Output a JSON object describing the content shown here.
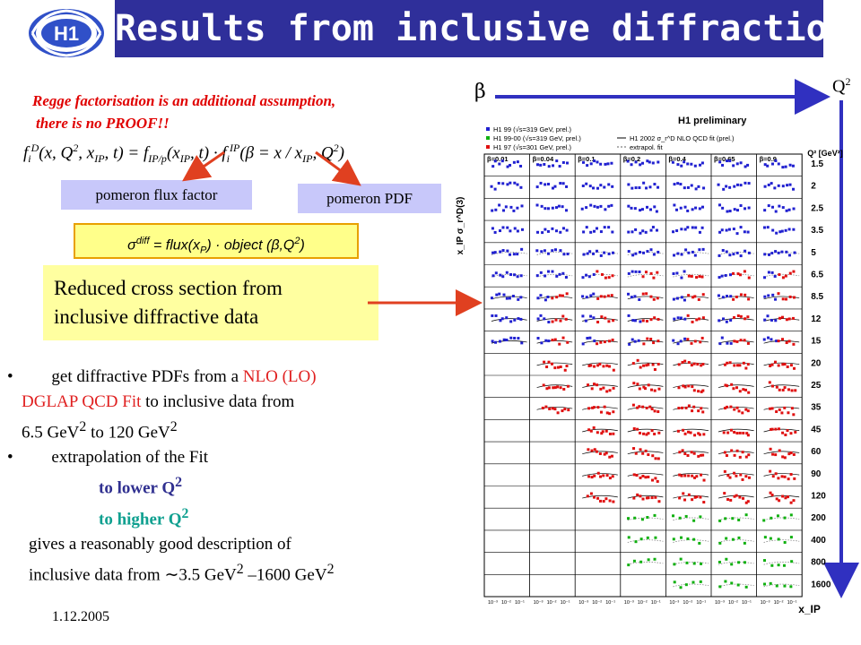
{
  "header": {
    "title": "Results from inclusive diffraction",
    "logo_text": "H1"
  },
  "left": {
    "regge_line1": "Regge factorisation is an additional assumption,",
    "regge_line2": "there is no PROOF!!",
    "flux_box": "pomeron flux factor",
    "pdf_box": "pomeron PDF",
    "sigma_prefix": "σ",
    "sigma_sup": "diff",
    "sigma_mid": " = flux(x",
    "sigma_sub": "P",
    "sigma_tail1": ") · object (β,Q",
    "sigma_sup2": "2",
    "sigma_tail2": ")",
    "reduced_line1": "Reduced cross section from",
    "reduced_line2": "inclusive diffractive data"
  },
  "bullets": {
    "b1_pre": "get diffractive PDFs from a ",
    "b1_red": "NLO (LO)",
    "b1_line2_red": "DGLAP QCD Fit",
    "b1_line2_rest": " to inclusive data from",
    "b1_line3": "6.5 GeV",
    "b1_line3_sup": "2",
    "b1_line3_mid": " to 120 GeV",
    "b1_line3_sup2": "2",
    "b2": "extrapolation of the Fit",
    "b2_lower": "to lower Q",
    "b2_lower_sup": "2",
    "b2_higher": "to higher Q",
    "b2_higher_sup": "2",
    "gives_line1": "gives a reasonably good description of",
    "gives_line2_pre": "inclusive data from ",
    "gives_line2_approx": "∼",
    "gives_line2_mid": "3.5 GeV",
    "gives_line2_sup": "2",
    "gives_line2_dash": " –1600 GeV",
    "gives_line2_sup2": "2"
  },
  "footer": {
    "date": "1.12.2005"
  },
  "axis_arrows": {
    "beta": "β",
    "q2": "Q",
    "q2_sup": "2"
  },
  "chart_data": {
    "type": "scatter",
    "title": "H1 preliminary",
    "ylabel": "x_IP σ_r^D(3)",
    "xlabel": "x_IP",
    "legend": [
      {
        "name": "H1 99 (√s=319 GeV, prel.)",
        "color": "#2020d0"
      },
      {
        "name": "H1 99-00 (√s=319 GeV, prel.)",
        "color": "#10b010"
      },
      {
        "name": "H1 97 (√s=301 GeV, prel.)",
        "color": "#e01010"
      },
      {
        "name": "H1 2002 σ_r^D NLO QCD fit (prel.)",
        "color": "#000000"
      },
      {
        "name": "extrapol. fit",
        "color": "#606060"
      }
    ],
    "beta_columns": [
      "β=0.01",
      "β=0.04",
      "β=0.1",
      "β=0.2",
      "β=0.4",
      "β=0.65",
      "β=0.9"
    ],
    "q2_unit": "Q² [GeV²]",
    "q2_rows": [
      "1.5",
      "2",
      "2.5",
      "3.5",
      "5",
      "6.5",
      "8.5",
      "12",
      "15",
      "20",
      "25",
      "35",
      "45",
      "60",
      "90",
      "120",
      "200",
      "400",
      "800",
      "1600"
    ],
    "x_ticks": [
      "10⁻³",
      "10⁻²",
      "10⁻¹"
    ],
    "colors": {
      "blue": "#2020d0",
      "red": "#e01010",
      "green": "#10b010",
      "fit": "#000000"
    }
  }
}
